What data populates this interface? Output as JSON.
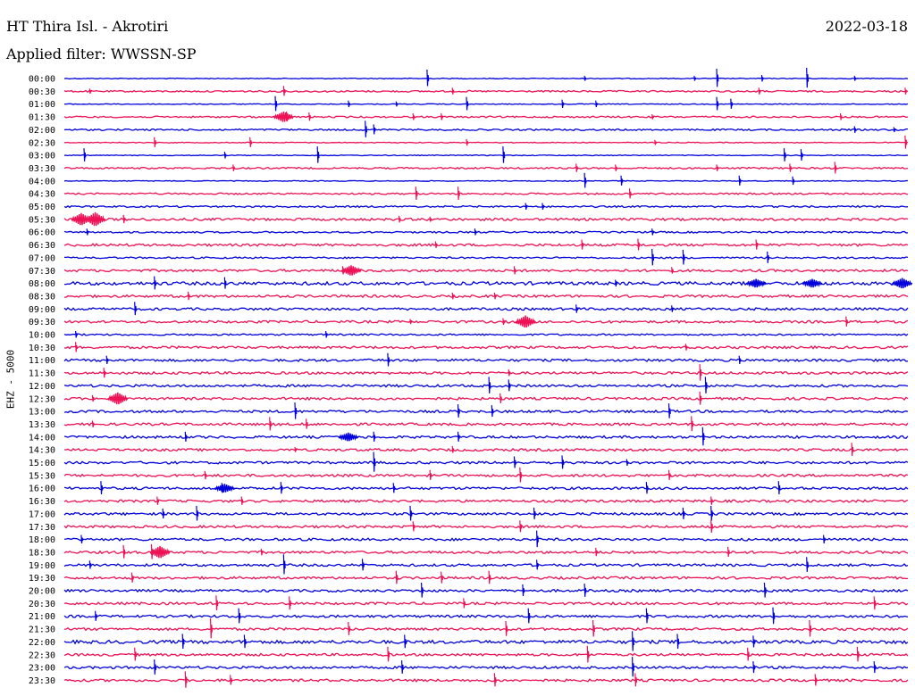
{
  "header": {
    "station": "HT Thira Isl. - Akrotiri",
    "date": "2022-03-18",
    "filter": "Applied filter: WWSSN-SP",
    "channel": "EHZ - 5000"
  },
  "colors": {
    "trace_a": "#0000dd",
    "trace_b": "#ee1155",
    "text": "#000000"
  },
  "chart_data": {
    "type": "line",
    "description_type": "helicorder seismogram",
    "rows": [
      "00:00",
      "00:30",
      "01:00",
      "01:30",
      "02:00",
      "02:30",
      "03:00",
      "03:30",
      "04:00",
      "04:30",
      "05:00",
      "05:30",
      "06:00",
      "06:30",
      "07:00",
      "07:30",
      "08:00",
      "08:30",
      "09:00",
      "09:30",
      "10:00",
      "10:30",
      "11:00",
      "11:30",
      "12:00",
      "12:30",
      "13:00",
      "13:30",
      "14:00",
      "14:30",
      "15:00",
      "15:30",
      "16:00",
      "16:30",
      "17:00",
      "17:30",
      "18:00",
      "18:30",
      "19:00",
      "19:30",
      "20:00",
      "20:30",
      "21:00",
      "21:30",
      "22:00",
      "22:30",
      "23:00",
      "23:30"
    ],
    "row_minutes": 30,
    "row_color_cycle": [
      "blue",
      "red"
    ],
    "noise_level": [
      1,
      2,
      1,
      2,
      2,
      1,
      1,
      2,
      1,
      2,
      2,
      3,
      2,
      3,
      2,
      3,
      4,
      3,
      3,
      3,
      2,
      3,
      3,
      3,
      3,
      3,
      3,
      3,
      3,
      3,
      3,
      3,
      3,
      3,
      3,
      3,
      3,
      3,
      3,
      3,
      3,
      3,
      3,
      3,
      4,
      3,
      3,
      3
    ],
    "events": [
      {
        "row": 0,
        "minute": 12.9,
        "amp": 10
      },
      {
        "row": 0,
        "minute": 18.5,
        "amp": 3
      },
      {
        "row": 0,
        "minute": 23.2,
        "amp": 11
      },
      {
        "row": 0,
        "minute": 24.8,
        "amp": 4
      },
      {
        "row": 0,
        "minute": 22.4,
        "amp": 3
      },
      {
        "row": 0,
        "minute": 26.4,
        "amp": 12
      },
      {
        "row": 0,
        "minute": 28.1,
        "amp": 3
      },
      {
        "row": 1,
        "minute": 0.9,
        "amp": 3
      },
      {
        "row": 1,
        "minute": 7.8,
        "amp": 6
      },
      {
        "row": 1,
        "minute": 13.8,
        "amp": 4
      },
      {
        "row": 1,
        "minute": 24.7,
        "amp": 4
      },
      {
        "row": 1,
        "minute": 29.9,
        "amp": 4
      },
      {
        "row": 2,
        "minute": 7.5,
        "amp": 9
      },
      {
        "row": 2,
        "minute": 10.1,
        "amp": 4
      },
      {
        "row": 2,
        "minute": 11.8,
        "amp": 3
      },
      {
        "row": 2,
        "minute": 14.3,
        "amp": 8
      },
      {
        "row": 2,
        "minute": 17.7,
        "amp": 5
      },
      {
        "row": 2,
        "minute": 18.9,
        "amp": 4
      },
      {
        "row": 2,
        "minute": 23.2,
        "amp": 8
      },
      {
        "row": 2,
        "minute": 23.7,
        "amp": 6
      },
      {
        "row": 3,
        "minute": 7.9,
        "amp": 6
      },
      {
        "row": 3,
        "minute": 8.7,
        "amp": 5
      },
      {
        "row": 3,
        "minute": 12.4,
        "amp": 4
      },
      {
        "row": 3,
        "minute": 13.4,
        "amp": 4
      },
      {
        "row": 3,
        "minute": 20.9,
        "amp": 3
      },
      {
        "row": 3,
        "minute": 27.6,
        "amp": 4
      },
      {
        "row": 4,
        "minute": 10.7,
        "amp": 10
      },
      {
        "row": 4,
        "minute": 11.0,
        "amp": 6
      },
      {
        "row": 4,
        "minute": 28.1,
        "amp": 4
      },
      {
        "row": 4,
        "minute": 29.5,
        "amp": 3
      },
      {
        "row": 5,
        "minute": 3.2,
        "amp": 6
      },
      {
        "row": 5,
        "minute": 6.6,
        "amp": 6
      },
      {
        "row": 5,
        "minute": 14.3,
        "amp": 4
      },
      {
        "row": 5,
        "minute": 21.0,
        "amp": 3
      },
      {
        "row": 5,
        "minute": 29.9,
        "amp": 8
      },
      {
        "row": 6,
        "minute": 0.7,
        "amp": 8
      },
      {
        "row": 6,
        "minute": 5.7,
        "amp": 4
      },
      {
        "row": 6,
        "minute": 9.0,
        "amp": 10
      },
      {
        "row": 6,
        "minute": 15.6,
        "amp": 10
      },
      {
        "row": 6,
        "minute": 25.6,
        "amp": 8
      },
      {
        "row": 6,
        "minute": 26.2,
        "amp": 7
      },
      {
        "row": 7,
        "minute": 6.0,
        "amp": 4
      },
      {
        "row": 7,
        "minute": 18.2,
        "amp": 5
      },
      {
        "row": 7,
        "minute": 19.6,
        "amp": 4
      },
      {
        "row": 7,
        "minute": 23.2,
        "amp": 4
      },
      {
        "row": 7,
        "minute": 25.8,
        "amp": 5
      },
      {
        "row": 7,
        "minute": 27.4,
        "amp": 7
      },
      {
        "row": 8,
        "minute": 18.5,
        "amp": 9
      },
      {
        "row": 8,
        "minute": 19.8,
        "amp": 6
      },
      {
        "row": 8,
        "minute": 24.0,
        "amp": 6
      },
      {
        "row": 8,
        "minute": 25.9,
        "amp": 5
      },
      {
        "row": 9,
        "minute": 12.5,
        "amp": 8
      },
      {
        "row": 9,
        "minute": 14.0,
        "amp": 8
      },
      {
        "row": 9,
        "minute": 20.1,
        "amp": 6
      },
      {
        "row": 10,
        "minute": 16.4,
        "amp": 4
      },
      {
        "row": 10,
        "minute": 17.0,
        "amp": 4
      },
      {
        "row": 11,
        "minute": 1.0,
        "amp": 3
      },
      {
        "row": 11,
        "minute": 2.1,
        "amp": 5
      },
      {
        "row": 11,
        "minute": 11.9,
        "amp": 4
      },
      {
        "row": 11,
        "minute": 13.0,
        "amp": 3
      },
      {
        "row": 12,
        "minute": 0.8,
        "amp": 4
      },
      {
        "row": 12,
        "minute": 14.6,
        "amp": 4
      },
      {
        "row": 12,
        "minute": 20.9,
        "amp": 4
      },
      {
        "row": 13,
        "minute": 13.2,
        "amp": 4
      },
      {
        "row": 13,
        "minute": 18.4,
        "amp": 6
      },
      {
        "row": 13,
        "minute": 20.4,
        "amp": 7
      },
      {
        "row": 13,
        "minute": 24.6,
        "amp": 6
      },
      {
        "row": 14,
        "minute": 20.9,
        "amp": 10
      },
      {
        "row": 14,
        "minute": 22.0,
        "amp": 9
      },
      {
        "row": 14,
        "minute": 25.0,
        "amp": 7
      },
      {
        "row": 15,
        "minute": 9.9,
        "amp": 5
      },
      {
        "row": 15,
        "minute": 16.0,
        "amp": 5
      },
      {
        "row": 15,
        "minute": 21.6,
        "amp": 4
      },
      {
        "row": 16,
        "minute": 3.2,
        "amp": 8
      },
      {
        "row": 16,
        "minute": 5.7,
        "amp": 7
      },
      {
        "row": 16,
        "minute": 19.6,
        "amp": 4
      },
      {
        "row": 17,
        "minute": 4.4,
        "amp": 5
      },
      {
        "row": 17,
        "minute": 13.8,
        "amp": 4
      },
      {
        "row": 17,
        "minute": 15.3,
        "amp": 4
      },
      {
        "row": 18,
        "minute": 2.5,
        "amp": 8
      },
      {
        "row": 18,
        "minute": 18.2,
        "amp": 5
      },
      {
        "row": 18,
        "minute": 21.6,
        "amp": 4
      },
      {
        "row": 19,
        "minute": 12.3,
        "amp": 3
      },
      {
        "row": 19,
        "minute": 15.6,
        "amp": 4
      },
      {
        "row": 19,
        "minute": 27.8,
        "amp": 6
      },
      {
        "row": 20,
        "minute": 9.3,
        "amp": 4
      },
      {
        "row": 20,
        "minute": 0.4,
        "amp": 4
      },
      {
        "row": 21,
        "minute": 0.4,
        "amp": 6
      },
      {
        "row": 21,
        "minute": 22.1,
        "amp": 4
      },
      {
        "row": 22,
        "minute": 11.5,
        "amp": 8
      },
      {
        "row": 22,
        "minute": 1.5,
        "amp": 5
      },
      {
        "row": 22,
        "minute": 24.0,
        "amp": 5
      },
      {
        "row": 23,
        "minute": 1.4,
        "amp": 6
      },
      {
        "row": 23,
        "minute": 15.8,
        "amp": 4
      },
      {
        "row": 23,
        "minute": 22.6,
        "amp": 10
      },
      {
        "row": 24,
        "minute": 15.1,
        "amp": 10
      },
      {
        "row": 24,
        "minute": 15.8,
        "amp": 7
      },
      {
        "row": 24,
        "minute": 22.8,
        "amp": 10
      },
      {
        "row": 25,
        "minute": 1.0,
        "amp": 4
      },
      {
        "row": 25,
        "minute": 15.5,
        "amp": 6
      },
      {
        "row": 25,
        "minute": 22.6,
        "amp": 8
      },
      {
        "row": 26,
        "minute": 8.2,
        "amp": 10
      },
      {
        "row": 26,
        "minute": 14.0,
        "amp": 8
      },
      {
        "row": 26,
        "minute": 15.2,
        "amp": 7
      },
      {
        "row": 26,
        "minute": 21.5,
        "amp": 9
      },
      {
        "row": 27,
        "minute": 1.0,
        "amp": 4
      },
      {
        "row": 27,
        "minute": 7.3,
        "amp": 8
      },
      {
        "row": 27,
        "minute": 8.6,
        "amp": 6
      },
      {
        "row": 27,
        "minute": 22.3,
        "amp": 9
      },
      {
        "row": 28,
        "minute": 4.3,
        "amp": 6
      },
      {
        "row": 28,
        "minute": 11.0,
        "amp": 6
      },
      {
        "row": 28,
        "minute": 14.0,
        "amp": 6
      },
      {
        "row": 28,
        "minute": 22.7,
        "amp": 11
      },
      {
        "row": 29,
        "minute": 8.2,
        "amp": 3
      },
      {
        "row": 29,
        "minute": 13.8,
        "amp": 4
      },
      {
        "row": 29,
        "minute": 28.0,
        "amp": 8
      },
      {
        "row": 30,
        "minute": 11.0,
        "amp": 12
      },
      {
        "row": 30,
        "minute": 16.0,
        "amp": 7
      },
      {
        "row": 30,
        "minute": 17.7,
        "amp": 8
      },
      {
        "row": 30,
        "minute": 20.0,
        "amp": 4
      },
      {
        "row": 31,
        "minute": 5.0,
        "amp": 5
      },
      {
        "row": 31,
        "minute": 13.0,
        "amp": 6
      },
      {
        "row": 31,
        "minute": 16.2,
        "amp": 9
      },
      {
        "row": 31,
        "minute": 21.5,
        "amp": 6
      },
      {
        "row": 32,
        "minute": 1.3,
        "amp": 8
      },
      {
        "row": 32,
        "minute": 5.6,
        "amp": 6
      },
      {
        "row": 32,
        "minute": 7.7,
        "amp": 7
      },
      {
        "row": 32,
        "minute": 11.7,
        "amp": 6
      },
      {
        "row": 32,
        "minute": 20.7,
        "amp": 7
      },
      {
        "row": 32,
        "minute": 25.4,
        "amp": 8
      },
      {
        "row": 33,
        "minute": 3.3,
        "amp": 5
      },
      {
        "row": 33,
        "minute": 6.3,
        "amp": 5
      },
      {
        "row": 33,
        "minute": 23.0,
        "amp": 5
      },
      {
        "row": 34,
        "minute": 3.5,
        "amp": 6
      },
      {
        "row": 34,
        "minute": 4.7,
        "amp": 9
      },
      {
        "row": 34,
        "minute": 12.3,
        "amp": 9
      },
      {
        "row": 34,
        "minute": 16.7,
        "amp": 7
      },
      {
        "row": 34,
        "minute": 22.0,
        "amp": 7
      },
      {
        "row": 34,
        "minute": 23.0,
        "amp": 9
      },
      {
        "row": 35,
        "minute": 12.4,
        "amp": 6
      },
      {
        "row": 35,
        "minute": 16.2,
        "amp": 7
      },
      {
        "row": 35,
        "minute": 23.0,
        "amp": 8
      },
      {
        "row": 36,
        "minute": 0.6,
        "amp": 5
      },
      {
        "row": 36,
        "minute": 16.8,
        "amp": 10
      },
      {
        "row": 36,
        "minute": 27.0,
        "amp": 5
      },
      {
        "row": 37,
        "minute": 2.1,
        "amp": 8
      },
      {
        "row": 37,
        "minute": 3.1,
        "amp": 9
      },
      {
        "row": 37,
        "minute": 7.0,
        "amp": 4
      },
      {
        "row": 37,
        "minute": 18.9,
        "amp": 5
      },
      {
        "row": 37,
        "minute": 23.6,
        "amp": 6
      },
      {
        "row": 38,
        "minute": 0.9,
        "amp": 5
      },
      {
        "row": 38,
        "minute": 7.8,
        "amp": 12
      },
      {
        "row": 38,
        "minute": 10.6,
        "amp": 7
      },
      {
        "row": 38,
        "minute": 16.8,
        "amp": 6
      },
      {
        "row": 38,
        "minute": 26.4,
        "amp": 9
      },
      {
        "row": 39,
        "minute": 2.4,
        "amp": 6
      },
      {
        "row": 39,
        "minute": 11.8,
        "amp": 8
      },
      {
        "row": 39,
        "minute": 13.4,
        "amp": 7
      },
      {
        "row": 39,
        "minute": 15.1,
        "amp": 8
      },
      {
        "row": 40,
        "minute": 12.7,
        "amp": 9
      },
      {
        "row": 40,
        "minute": 16.3,
        "amp": 7
      },
      {
        "row": 40,
        "minute": 18.5,
        "amp": 8
      },
      {
        "row": 40,
        "minute": 24.9,
        "amp": 9
      },
      {
        "row": 41,
        "minute": 5.4,
        "amp": 9
      },
      {
        "row": 41,
        "minute": 8.0,
        "amp": 8
      },
      {
        "row": 41,
        "minute": 14.2,
        "amp": 6
      },
      {
        "row": 41,
        "minute": 28.8,
        "amp": 8
      },
      {
        "row": 42,
        "minute": 1.1,
        "amp": 6
      },
      {
        "row": 42,
        "minute": 6.2,
        "amp": 9
      },
      {
        "row": 42,
        "minute": 16.5,
        "amp": 9
      },
      {
        "row": 42,
        "minute": 20.7,
        "amp": 9
      },
      {
        "row": 42,
        "minute": 25.2,
        "amp": 10
      },
      {
        "row": 43,
        "minute": 5.2,
        "amp": 12
      },
      {
        "row": 43,
        "minute": 10.1,
        "amp": 8
      },
      {
        "row": 43,
        "minute": 15.7,
        "amp": 9
      },
      {
        "row": 43,
        "minute": 18.8,
        "amp": 10
      },
      {
        "row": 43,
        "minute": 26.5,
        "amp": 10
      },
      {
        "row": 44,
        "minute": 4.2,
        "amp": 9
      },
      {
        "row": 44,
        "minute": 6.4,
        "amp": 8
      },
      {
        "row": 44,
        "minute": 12.1,
        "amp": 8
      },
      {
        "row": 44,
        "minute": 20.2,
        "amp": 12
      },
      {
        "row": 44,
        "minute": 21.8,
        "amp": 9
      },
      {
        "row": 44,
        "minute": 24.5,
        "amp": 7
      },
      {
        "row": 45,
        "minute": 2.5,
        "amp": 8
      },
      {
        "row": 45,
        "minute": 11.5,
        "amp": 9
      },
      {
        "row": 45,
        "minute": 18.6,
        "amp": 10
      },
      {
        "row": 45,
        "minute": 24.3,
        "amp": 8
      },
      {
        "row": 45,
        "minute": 28.2,
        "amp": 9
      },
      {
        "row": 46,
        "minute": 3.2,
        "amp": 9
      },
      {
        "row": 46,
        "minute": 12.0,
        "amp": 8
      },
      {
        "row": 46,
        "minute": 20.2,
        "amp": 12
      },
      {
        "row": 46,
        "minute": 24.5,
        "amp": 7
      },
      {
        "row": 46,
        "minute": 28.8,
        "amp": 7
      },
      {
        "row": 47,
        "minute": 4.3,
        "amp": 10
      },
      {
        "row": 47,
        "minute": 5.9,
        "amp": 6
      },
      {
        "row": 47,
        "minute": 15.3,
        "amp": 8
      },
      {
        "row": 47,
        "minute": 20.3,
        "amp": 8
      },
      {
        "row": 47,
        "minute": 26.7,
        "amp": 7
      }
    ],
    "bursts": [
      {
        "row": 3,
        "minute": 7.8,
        "amp": 6
      },
      {
        "row": 11,
        "minute": 0.6,
        "amp": 7
      },
      {
        "row": 11,
        "minute": 1.1,
        "amp": 8
      },
      {
        "row": 15,
        "minute": 10.2,
        "amp": 6
      },
      {
        "row": 16,
        "minute": 24.6,
        "amp": 5
      },
      {
        "row": 16,
        "minute": 26.6,
        "amp": 5
      },
      {
        "row": 16,
        "minute": 29.8,
        "amp": 6
      },
      {
        "row": 19,
        "minute": 16.4,
        "amp": 7
      },
      {
        "row": 25,
        "minute": 1.9,
        "amp": 7
      },
      {
        "row": 28,
        "minute": 10.1,
        "amp": 5
      },
      {
        "row": 32,
        "minute": 5.7,
        "amp": 5
      },
      {
        "row": 37,
        "minute": 3.4,
        "amp": 7
      }
    ]
  }
}
